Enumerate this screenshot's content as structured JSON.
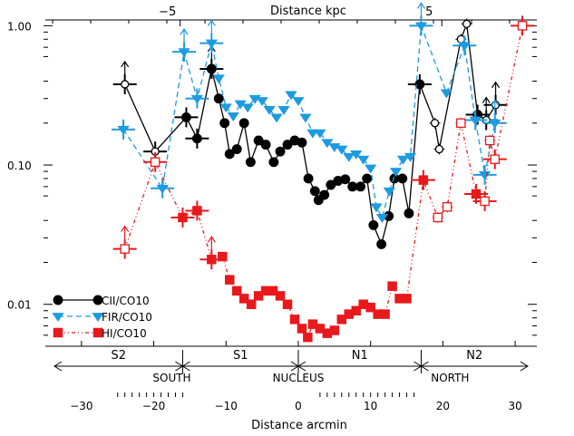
{
  "chart_data": {
    "type": "line",
    "x_axis_bottom": {
      "label": "Distance arcmin",
      "range": [
        -35,
        33
      ],
      "ticks": [
        -30,
        -20,
        -10,
        0,
        10,
        20,
        30
      ],
      "tick_labels": [
        "−30",
        "−20",
        "−10",
        "0",
        "10",
        "20",
        "30"
      ]
    },
    "x_axis_top": {
      "label": "Distance kpc",
      "ticks_arcmin": [
        -18.1,
        18.1
      ],
      "tick_labels": [
        "−5",
        "5"
      ]
    },
    "y_axis": {
      "scale": "log",
      "range": [
        0.005,
        1.1
      ],
      "ticks": [
        0.01,
        0.1,
        1.0
      ],
      "tick_labels": [
        "0.01",
        "0.10",
        "1.00"
      ]
    },
    "legend": {
      "placement": "lower-left",
      "entries": [
        "CII/CO10",
        "FIR/CO10",
        "HI/CO10"
      ]
    },
    "regions": [
      {
        "label": "S2",
        "from": -35,
        "to": -16
      },
      {
        "label": "S1",
        "from": -16,
        "to": 0
      },
      {
        "label": "N1",
        "from": 0,
        "to": 17
      },
      {
        "label": "N2",
        "from": 17,
        "to": 33
      }
    ],
    "zones": [
      {
        "label": "SOUTH",
        "x": -17.5
      },
      {
        "label": "NUCLEUS",
        "x": 0
      },
      {
        "label": "NORTH",
        "x": 21
      }
    ],
    "series": [
      {
        "name": "CII/CO10",
        "color": "#000000",
        "points": [
          {
            "x": -24.0,
            "y": 0.38,
            "m": "o",
            "err": 1,
            "lim": 1
          },
          {
            "x": -19.8,
            "y": 0.125,
            "m": "o",
            "err": 1
          },
          {
            "x": -15.5,
            "y": 0.22,
            "err": 1
          },
          {
            "x": -14.0,
            "y": 0.155,
            "err": 1
          },
          {
            "x": -12.0,
            "y": 0.49,
            "err": 1,
            "lim": 1
          },
          {
            "x": -11.0,
            "y": 0.3
          },
          {
            "x": -10.2,
            "y": 0.2
          },
          {
            "x": -9.5,
            "y": 0.12
          },
          {
            "x": -8.5,
            "y": 0.13
          },
          {
            "x": -7.5,
            "y": 0.2
          },
          {
            "x": -6.6,
            "y": 0.105
          },
          {
            "x": -5.5,
            "y": 0.15
          },
          {
            "x": -4.5,
            "y": 0.14
          },
          {
            "x": -3.4,
            "y": 0.105
          },
          {
            "x": -2.5,
            "y": 0.125
          },
          {
            "x": -1.5,
            "y": 0.14
          },
          {
            "x": -0.5,
            "y": 0.15
          },
          {
            "x": 0.5,
            "y": 0.145
          },
          {
            "x": 1.4,
            "y": 0.08
          },
          {
            "x": 2.3,
            "y": 0.065
          },
          {
            "x": 2.8,
            "y": 0.056
          },
          {
            "x": 3.6,
            "y": 0.061
          },
          {
            "x": 4.5,
            "y": 0.072
          },
          {
            "x": 5.5,
            "y": 0.077
          },
          {
            "x": 6.5,
            "y": 0.079
          },
          {
            "x": 7.5,
            "y": 0.07
          },
          {
            "x": 8.6,
            "y": 0.07
          },
          {
            "x": 9.5,
            "y": 0.08
          },
          {
            "x": 10.4,
            "y": 0.037
          },
          {
            "x": 11.5,
            "y": 0.027
          },
          {
            "x": 12.5,
            "y": 0.043
          },
          {
            "x": 13.3,
            "y": 0.08
          },
          {
            "x": 14.4,
            "y": 0.08
          },
          {
            "x": 15.3,
            "y": 0.045
          },
          {
            "x": 16.8,
            "y": 0.38,
            "err": 1
          },
          {
            "x": 18.9,
            "y": 0.2,
            "m": "o"
          },
          {
            "x": 19.5,
            "y": 0.13,
            "m": "o"
          },
          {
            "x": 22.5,
            "y": 0.8,
            "m": "o"
          },
          {
            "x": 23.3,
            "y": 1.03,
            "m": "o"
          },
          {
            "x": 24.8,
            "y": 0.23,
            "err": 1
          },
          {
            "x": 26.0,
            "y": 0.21,
            "m": "o",
            "err": 1,
            "lim": 1
          },
          {
            "x": 27.3,
            "y": 0.27,
            "m": "o",
            "err": 1,
            "lim": 1
          }
        ]
      },
      {
        "name": "FIR/CO10",
        "color": "#1e9be0",
        "points": [
          {
            "x": -24.2,
            "y": 0.18,
            "err": 1
          },
          {
            "x": -18.8,
            "y": 0.068,
            "err": 1
          },
          {
            "x": -15.8,
            "y": 0.65,
            "err": 1,
            "lim": 1
          },
          {
            "x": -14.0,
            "y": 0.3,
            "err": 1
          },
          {
            "x": -12.0,
            "y": 0.75,
            "err": 1,
            "lim": 1
          },
          {
            "x": -11.0,
            "y": 0.42
          },
          {
            "x": -10.0,
            "y": 0.26
          },
          {
            "x": -9.0,
            "y": 0.225
          },
          {
            "x": -8.0,
            "y": 0.275
          },
          {
            "x": -7.0,
            "y": 0.26
          },
          {
            "x": -6.0,
            "y": 0.3
          },
          {
            "x": -5.0,
            "y": 0.29
          },
          {
            "x": -4.0,
            "y": 0.25
          },
          {
            "x": -3.0,
            "y": 0.22
          },
          {
            "x": -2.0,
            "y": 0.25
          },
          {
            "x": -1.0,
            "y": 0.32
          },
          {
            "x": 0.0,
            "y": 0.29
          },
          {
            "x": 1.0,
            "y": 0.22
          },
          {
            "x": 2.0,
            "y": 0.17
          },
          {
            "x": 3.0,
            "y": 0.17
          },
          {
            "x": 4.0,
            "y": 0.145
          },
          {
            "x": 5.0,
            "y": 0.135
          },
          {
            "x": 6.0,
            "y": 0.13
          },
          {
            "x": 7.0,
            "y": 0.115
          },
          {
            "x": 8.0,
            "y": 0.12
          },
          {
            "x": 9.0,
            "y": 0.11
          },
          {
            "x": 10.0,
            "y": 0.095
          },
          {
            "x": 10.8,
            "y": 0.05
          },
          {
            "x": 11.6,
            "y": 0.042
          },
          {
            "x": 12.6,
            "y": 0.065
          },
          {
            "x": 13.5,
            "y": 0.09
          },
          {
            "x": 14.5,
            "y": 0.11
          },
          {
            "x": 15.5,
            "y": 0.115
          },
          {
            "x": 17.0,
            "y": 1.0,
            "err": 1,
            "lim": 1
          },
          {
            "x": 20.5,
            "y": 0.33
          },
          {
            "x": 23.0,
            "y": 0.72,
            "err": 1
          },
          {
            "x": 24.5,
            "y": 0.21,
            "err": 1
          },
          {
            "x": 25.8,
            "y": 0.085,
            "err": 1
          },
          {
            "x": 27.2,
            "y": 0.2,
            "err": 1,
            "lim": 1
          }
        ]
      },
      {
        "name": "HI/CO10",
        "color": "#e8191c",
        "points": [
          {
            "x": -24.0,
            "y": 0.025,
            "m": "o",
            "err": 1,
            "lim": 1
          },
          {
            "x": -19.8,
            "y": 0.105,
            "m": "o",
            "err": 1
          },
          {
            "x": -16.0,
            "y": 0.042,
            "err": 1
          },
          {
            "x": -14.0,
            "y": 0.047,
            "err": 1
          },
          {
            "x": -12.0,
            "y": 0.021,
            "err": 1,
            "lim": 1
          },
          {
            "x": -10.5,
            "y": 0.022
          },
          {
            "x": -9.5,
            "y": 0.015
          },
          {
            "x": -8.5,
            "y": 0.0125
          },
          {
            "x": -7.5,
            "y": 0.011
          },
          {
            "x": -6.5,
            "y": 0.01
          },
          {
            "x": -5.5,
            "y": 0.0115
          },
          {
            "x": -4.5,
            "y": 0.0125
          },
          {
            "x": -3.5,
            "y": 0.0125
          },
          {
            "x": -2.5,
            "y": 0.0115
          },
          {
            "x": -1.5,
            "y": 0.01
          },
          {
            "x": -0.5,
            "y": 0.0078
          },
          {
            "x": 0.5,
            "y": 0.0067
          },
          {
            "x": 1.3,
            "y": 0.0058
          },
          {
            "x": 2.0,
            "y": 0.0072
          },
          {
            "x": 3.0,
            "y": 0.0067
          },
          {
            "x": 4.0,
            "y": 0.0062
          },
          {
            "x": 5.0,
            "y": 0.0065
          },
          {
            "x": 6.0,
            "y": 0.0078
          },
          {
            "x": 7.0,
            "y": 0.0085
          },
          {
            "x": 8.0,
            "y": 0.009
          },
          {
            "x": 9.0,
            "y": 0.01
          },
          {
            "x": 10.0,
            "y": 0.0095
          },
          {
            "x": 11.0,
            "y": 0.0085
          },
          {
            "x": 12.0,
            "y": 0.0085
          },
          {
            "x": 13.0,
            "y": 0.0135
          },
          {
            "x": 14.0,
            "y": 0.011
          },
          {
            "x": 15.0,
            "y": 0.011
          },
          {
            "x": 17.3,
            "y": 0.078,
            "err": 1
          },
          {
            "x": 19.3,
            "y": 0.042,
            "m": "o"
          },
          {
            "x": 20.6,
            "y": 0.05,
            "m": "o"
          },
          {
            "x": 22.5,
            "y": 0.2,
            "m": "o"
          },
          {
            "x": 24.6,
            "y": 0.062,
            "err": 1
          },
          {
            "x": 25.8,
            "y": 0.055,
            "m": "o",
            "err": 1
          },
          {
            "x": 26.5,
            "y": 0.15,
            "m": "o"
          },
          {
            "x": 27.2,
            "y": 0.11,
            "m": "o",
            "err": 1
          },
          {
            "x": 31.0,
            "y": 1.0,
            "m": "o",
            "err": 1
          }
        ]
      }
    ]
  }
}
